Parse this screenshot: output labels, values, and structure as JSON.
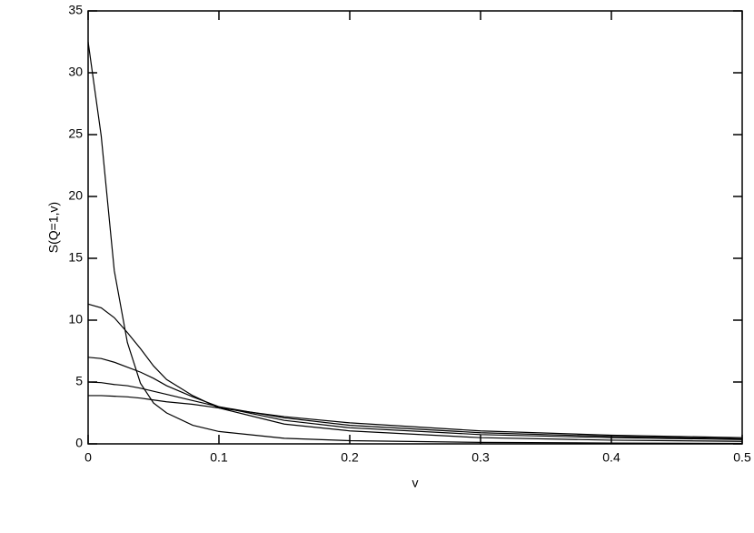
{
  "chart_data": {
    "type": "line",
    "xlabel": "v",
    "ylabel": "S(Q=1,v)",
    "x": [
      0,
      0.01,
      0.02,
      0.03,
      0.04,
      0.05,
      0.06,
      0.08,
      0.1,
      0.15,
      0.2,
      0.3,
      0.4,
      0.5
    ],
    "series": [
      {
        "color": "#000000",
        "values": [
          32.5,
          24.9,
          14,
          8.2,
          4.9,
          3.3,
          2.5,
          1.5,
          1.0,
          0.45,
          0.26,
          0.12,
          0.07,
          0.04
        ]
      },
      {
        "color": "#000000",
        "values": [
          11.3,
          11.0,
          10.2,
          9.0,
          7.7,
          6.3,
          5.2,
          3.9,
          2.9,
          1.6,
          1.05,
          0.5,
          0.3,
          0.2
        ]
      },
      {
        "color": "#000000",
        "values": [
          7.0,
          6.9,
          6.6,
          6.2,
          5.8,
          5.3,
          4.7,
          3.8,
          3.0,
          1.9,
          1.3,
          0.75,
          0.5,
          0.35
        ]
      },
      {
        "color": "#000000",
        "values": [
          5.0,
          4.95,
          4.8,
          4.7,
          4.5,
          4.25,
          4.0,
          3.5,
          3.0,
          2.1,
          1.5,
          0.9,
          0.6,
          0.42
        ]
      },
      {
        "color": "#000000",
        "values": [
          3.9,
          3.9,
          3.85,
          3.8,
          3.7,
          3.55,
          3.4,
          3.2,
          2.9,
          2.2,
          1.7,
          1.05,
          0.7,
          0.5
        ]
      }
    ],
    "xlim": [
      0,
      0.5
    ],
    "xticks": [
      0,
      0.1,
      0.2,
      0.3,
      0.4,
      0.5
    ],
    "ylim": [
      0,
      35
    ],
    "yticks": [
      0,
      5,
      10,
      15,
      20,
      25,
      30,
      35
    ],
    "grid": false
  }
}
